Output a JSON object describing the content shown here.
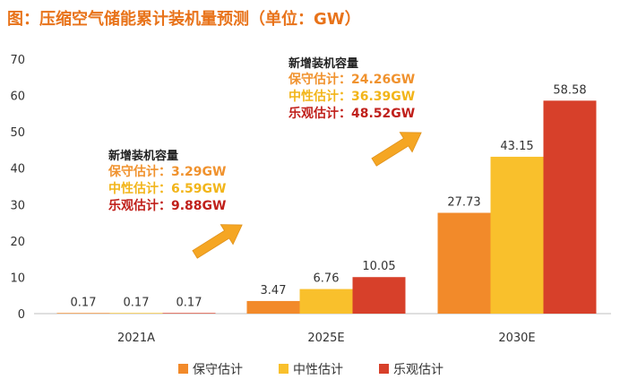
{
  "chart_data": {
    "type": "bar",
    "title": "图：压缩空气储能累计装机量预测（单位：GW）",
    "categories": [
      "2021A",
      "2025E",
      "2030E"
    ],
    "series": [
      {
        "name": "保守估计",
        "values": [
          0.17,
          3.47,
          27.73
        ]
      },
      {
        "name": "中性估计",
        "values": [
          0.17,
          6.76,
          43.15
        ]
      },
      {
        "name": "乐观估计",
        "values": [
          0.17,
          10.05,
          58.58
        ]
      }
    ],
    "ylim": [
      0,
      70
    ],
    "yticks": [
      0,
      10,
      20,
      30,
      40,
      50,
      60,
      70
    ],
    "grid": false,
    "legend": "bottom",
    "colors": {
      "title": "#E8731A",
      "conservative": "#F28A2A",
      "neutral": "#F9C02C",
      "optimistic": "#D7402A",
      "anno_conservative": "#F0922E",
      "anno_neutral": "#F2B51A",
      "anno_optimistic": "#C0201B",
      "arrow": "#F5A623"
    },
    "annotations": [
      {
        "heading": "新增装机容量",
        "lines": [
          "保守估计：3.29GW",
          "中性估计：6.59GW",
          "乐观估计：9.88GW"
        ]
      },
      {
        "heading": "新增装机容量",
        "lines": [
          "保守估计：24.26GW",
          "中性估计：36.39GW",
          "乐观估计：48.52GW"
        ]
      }
    ]
  }
}
